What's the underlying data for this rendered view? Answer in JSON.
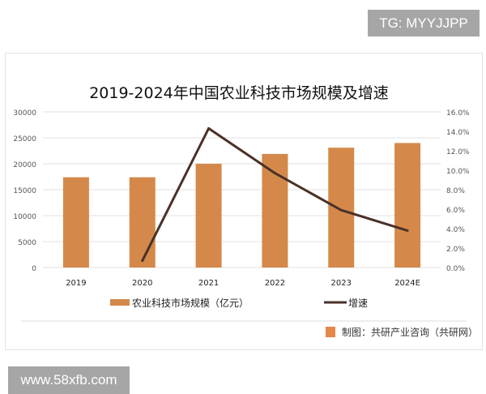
{
  "watermark_top": "TG: MYYJJPP",
  "watermark_bottom": "www.58xfb.com",
  "source": "制图：共研产业咨询（共研网）",
  "colors": {
    "bar": "#d4894a",
    "line": "#4a3128",
    "grid": "#e0e0e0"
  },
  "chart_data": {
    "type": "bar+line",
    "title": "2019-2024年中国农业科技市场规模及增速",
    "categories": [
      "2019",
      "2020",
      "2021",
      "2022",
      "2023",
      "2024E"
    ],
    "series": [
      {
        "name": "农业科技市场规模（亿元）",
        "type": "bar",
        "axis": "left",
        "values": [
          17400,
          17400,
          20000,
          21900,
          23100,
          24000
        ]
      },
      {
        "name": "增速",
        "type": "line",
        "axis": "right",
        "values": [
          null,
          0.7,
          14.3,
          9.7,
          5.9,
          3.8
        ]
      }
    ],
    "y_left": {
      "range": [
        0,
        30000
      ],
      "ticks": [
        "0",
        "5000",
        "10000",
        "15000",
        "20000",
        "25000",
        "30000"
      ]
    },
    "y_right": {
      "range": [
        0,
        16
      ],
      "ticks": [
        "0.0%",
        "2.0%",
        "4.0%",
        "6.0%",
        "8.0%",
        "10.0%",
        "12.0%",
        "14.0%",
        "16.0%"
      ]
    },
    "grid": true,
    "legend": "bottom"
  }
}
